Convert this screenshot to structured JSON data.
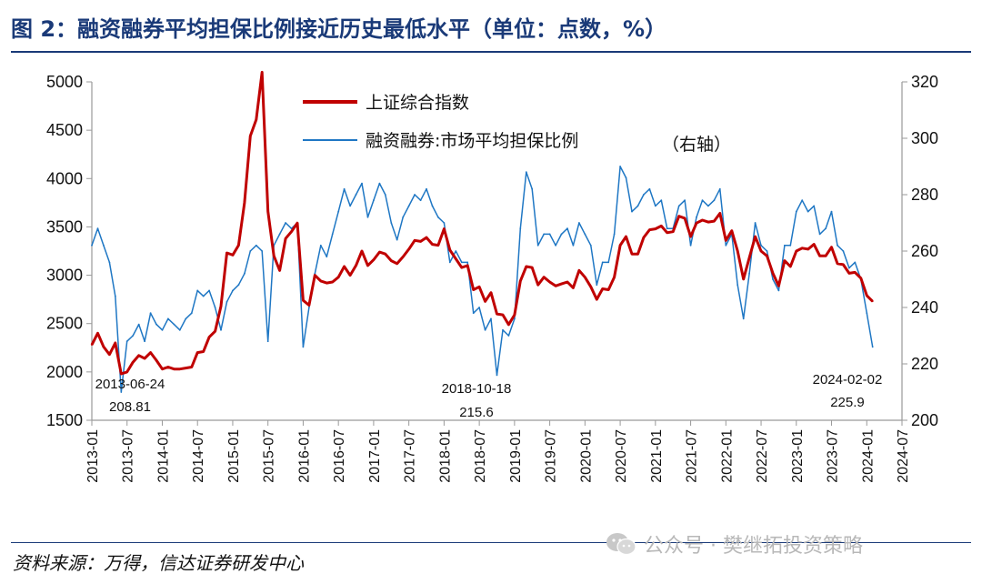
{
  "title": "图 2：融资融券平均担保比例接近历史最低水平（单位：点数，%）",
  "source": "资料来源：万得，信达证券研发中心",
  "watermark": "公众号 · 樊继拓投资策略",
  "colors": {
    "sse": "#c00000",
    "ratio": "#1f77c4",
    "title": "#1a3a78",
    "axis": "#9a9a9a"
  },
  "chart_data": {
    "type": "line",
    "legend_position": "top-center",
    "grid": false,
    "x": [
      "2013-01",
      "2013-07",
      "2014-01",
      "2014-07",
      "2015-01",
      "2015-07",
      "2016-01",
      "2016-07",
      "2017-01",
      "2017-07",
      "2018-01",
      "2018-07",
      "2019-01",
      "2019-07",
      "2020-01",
      "2020-07",
      "2021-01",
      "2021-07",
      "2022-01",
      "2022-07",
      "2023-01",
      "2023-07",
      "2024-01",
      "2024-07"
    ],
    "xlim": [
      "2013-01",
      "2024-07"
    ],
    "y_left": {
      "ylim": [
        1500,
        5000
      ],
      "ticks": [
        "1500",
        "2000",
        "2500",
        "3000",
        "3500",
        "4000",
        "4500",
        "5000"
      ]
    },
    "y_right": {
      "ylim": [
        200,
        320
      ],
      "ticks": [
        "200",
        "220",
        "240",
        "260",
        "280",
        "300",
        "320"
      ]
    },
    "series": [
      {
        "name": "上证综合指数",
        "axis": "left",
        "color": "#c00000",
        "points": [
          [
            "2013-01",
            2280
          ],
          [
            "2013-02",
            2400
          ],
          [
            "2013-03",
            2260
          ],
          [
            "2013-04",
            2180
          ],
          [
            "2013-05",
            2300
          ],
          [
            "2013-06",
            1980
          ],
          [
            "2013-07",
            2000
          ],
          [
            "2013-08",
            2100
          ],
          [
            "2013-09",
            2170
          ],
          [
            "2013-10",
            2140
          ],
          [
            "2013-11",
            2200
          ],
          [
            "2013-12",
            2120
          ],
          [
            "2014-01",
            2030
          ],
          [
            "2014-02",
            2050
          ],
          [
            "2014-03",
            2030
          ],
          [
            "2014-04",
            2030
          ],
          [
            "2014-05",
            2040
          ],
          [
            "2014-06",
            2050
          ],
          [
            "2014-07",
            2200
          ],
          [
            "2014-08",
            2210
          ],
          [
            "2014-09",
            2360
          ],
          [
            "2014-10",
            2420
          ],
          [
            "2014-11",
            2680
          ],
          [
            "2014-12",
            3230
          ],
          [
            "2015-01",
            3210
          ],
          [
            "2015-02",
            3310
          ],
          [
            "2015-03",
            3750
          ],
          [
            "2015-04",
            4440
          ],
          [
            "2015-05",
            4610
          ],
          [
            "2015-06",
            5100
          ],
          [
            "2015-07",
            3660
          ],
          [
            "2015-08",
            3200
          ],
          [
            "2015-09",
            3050
          ],
          [
            "2015-10",
            3380
          ],
          [
            "2015-11",
            3450
          ],
          [
            "2015-12",
            3540
          ],
          [
            "2016-01",
            2740
          ],
          [
            "2016-02",
            2690
          ],
          [
            "2016-03",
            3000
          ],
          [
            "2016-04",
            2940
          ],
          [
            "2016-05",
            2920
          ],
          [
            "2016-06",
            2930
          ],
          [
            "2016-07",
            2980
          ],
          [
            "2016-08",
            3090
          ],
          [
            "2016-09",
            3000
          ],
          [
            "2016-10",
            3100
          ],
          [
            "2016-11",
            3250
          ],
          [
            "2016-12",
            3100
          ],
          [
            "2017-01",
            3160
          ],
          [
            "2017-02",
            3240
          ],
          [
            "2017-03",
            3220
          ],
          [
            "2017-04",
            3150
          ],
          [
            "2017-05",
            3120
          ],
          [
            "2017-06",
            3190
          ],
          [
            "2017-07",
            3270
          ],
          [
            "2017-08",
            3360
          ],
          [
            "2017-09",
            3350
          ],
          [
            "2017-10",
            3390
          ],
          [
            "2017-11",
            3320
          ],
          [
            "2017-12",
            3310
          ],
          [
            "2018-01",
            3480
          ],
          [
            "2018-02",
            3260
          ],
          [
            "2018-03",
            3170
          ],
          [
            "2018-04",
            3080
          ],
          [
            "2018-05",
            3100
          ],
          [
            "2018-06",
            2850
          ],
          [
            "2018-07",
            2880
          ],
          [
            "2018-08",
            2730
          ],
          [
            "2018-09",
            2820
          ],
          [
            "2018-10",
            2600
          ],
          [
            "2018-11",
            2590
          ],
          [
            "2018-12",
            2490
          ],
          [
            "2019-01",
            2590
          ],
          [
            "2019-02",
            2940
          ],
          [
            "2019-03",
            3090
          ],
          [
            "2019-04",
            3080
          ],
          [
            "2019-05",
            2900
          ],
          [
            "2019-06",
            2980
          ],
          [
            "2019-07",
            2930
          ],
          [
            "2019-08",
            2890
          ],
          [
            "2019-09",
            2910
          ],
          [
            "2019-10",
            2930
          ],
          [
            "2019-11",
            2870
          ],
          [
            "2019-12",
            3050
          ],
          [
            "2020-01",
            2980
          ],
          [
            "2020-02",
            2880
          ],
          [
            "2020-03",
            2750
          ],
          [
            "2020-04",
            2860
          ],
          [
            "2020-05",
            2850
          ],
          [
            "2020-06",
            2980
          ],
          [
            "2020-07",
            3310
          ],
          [
            "2020-08",
            3400
          ],
          [
            "2020-09",
            3220
          ],
          [
            "2020-10",
            3220
          ],
          [
            "2020-11",
            3390
          ],
          [
            "2020-12",
            3470
          ],
          [
            "2021-01",
            3480
          ],
          [
            "2021-02",
            3510
          ],
          [
            "2021-03",
            3440
          ],
          [
            "2021-04",
            3450
          ],
          [
            "2021-05",
            3610
          ],
          [
            "2021-06",
            3590
          ],
          [
            "2021-07",
            3400
          ],
          [
            "2021-08",
            3540
          ],
          [
            "2021-09",
            3570
          ],
          [
            "2021-10",
            3550
          ],
          [
            "2021-11",
            3560
          ],
          [
            "2021-12",
            3640
          ],
          [
            "2022-01",
            3360
          ],
          [
            "2022-02",
            3460
          ],
          [
            "2022-03",
            3250
          ],
          [
            "2022-04",
            2960
          ],
          [
            "2022-05",
            3180
          ],
          [
            "2022-06",
            3400
          ],
          [
            "2022-07",
            3250
          ],
          [
            "2022-08",
            3200
          ],
          [
            "2022-09",
            3020
          ],
          [
            "2022-10",
            2890
          ],
          [
            "2022-11",
            3150
          ],
          [
            "2022-12",
            3090
          ],
          [
            "2023-01",
            3250
          ],
          [
            "2023-02",
            3280
          ],
          [
            "2023-03",
            3270
          ],
          [
            "2023-04",
            3320
          ],
          [
            "2023-05",
            3200
          ],
          [
            "2023-06",
            3200
          ],
          [
            "2023-07",
            3290
          ],
          [
            "2023-08",
            3120
          ],
          [
            "2023-09",
            3110
          ],
          [
            "2023-10",
            3020
          ],
          [
            "2023-11",
            3030
          ],
          [
            "2023-12",
            2970
          ],
          [
            "2024-01",
            2790
          ],
          [
            "2024-02",
            2730
          ]
        ]
      },
      {
        "name": "融资融券:市场平均担保比例",
        "name_suffix": "（右轴）",
        "axis": "right",
        "color": "#1f77c4",
        "points": [
          [
            "2013-01",
            262
          ],
          [
            "2013-02",
            268
          ],
          [
            "2013-03",
            262
          ],
          [
            "2013-04",
            256
          ],
          [
            "2013-05",
            244
          ],
          [
            "2013-06",
            210
          ],
          [
            "2013-07",
            228
          ],
          [
            "2013-08",
            230
          ],
          [
            "2013-09",
            234
          ],
          [
            "2013-10",
            228
          ],
          [
            "2013-11",
            238
          ],
          [
            "2013-12",
            234
          ],
          [
            "2014-01",
            232
          ],
          [
            "2014-02",
            236
          ],
          [
            "2014-03",
            234
          ],
          [
            "2014-04",
            232
          ],
          [
            "2014-05",
            236
          ],
          [
            "2014-06",
            238
          ],
          [
            "2014-07",
            246
          ],
          [
            "2014-08",
            244
          ],
          [
            "2014-09",
            246
          ],
          [
            "2014-10",
            240
          ],
          [
            "2014-11",
            232
          ],
          [
            "2014-12",
            242
          ],
          [
            "2015-01",
            246
          ],
          [
            "2015-02",
            248
          ],
          [
            "2015-03",
            252
          ],
          [
            "2015-04",
            260
          ],
          [
            "2015-05",
            262
          ],
          [
            "2015-06",
            260
          ],
          [
            "2015-07",
            228
          ],
          [
            "2015-08",
            262
          ],
          [
            "2015-09",
            266
          ],
          [
            "2015-10",
            270
          ],
          [
            "2015-11",
            268
          ],
          [
            "2015-12",
            270
          ],
          [
            "2016-01",
            226
          ],
          [
            "2016-02",
            240
          ],
          [
            "2016-03",
            252
          ],
          [
            "2016-04",
            262
          ],
          [
            "2016-05",
            258
          ],
          [
            "2016-06",
            266
          ],
          [
            "2016-07",
            274
          ],
          [
            "2016-08",
            282
          ],
          [
            "2016-09",
            276
          ],
          [
            "2016-10",
            280
          ],
          [
            "2016-11",
            284
          ],
          [
            "2016-12",
            272
          ],
          [
            "2017-01",
            278
          ],
          [
            "2017-02",
            284
          ],
          [
            "2017-03",
            280
          ],
          [
            "2017-04",
            270
          ],
          [
            "2017-05",
            264
          ],
          [
            "2017-06",
            272
          ],
          [
            "2017-07",
            276
          ],
          [
            "2017-08",
            280
          ],
          [
            "2017-09",
            278
          ],
          [
            "2017-10",
            282
          ],
          [
            "2017-11",
            276
          ],
          [
            "2017-12",
            272
          ],
          [
            "2018-01",
            270
          ],
          [
            "2018-02",
            256
          ],
          [
            "2018-03",
            260
          ],
          [
            "2018-04",
            256
          ],
          [
            "2018-05",
            256
          ],
          [
            "2018-06",
            238
          ],
          [
            "2018-07",
            240
          ],
          [
            "2018-08",
            232
          ],
          [
            "2018-09",
            236
          ],
          [
            "2018-10",
            216
          ],
          [
            "2018-11",
            232
          ],
          [
            "2018-12",
            230
          ],
          [
            "2019-01",
            236
          ],
          [
            "2019-02",
            268
          ],
          [
            "2019-03",
            288
          ],
          [
            "2019-04",
            282
          ],
          [
            "2019-05",
            262
          ],
          [
            "2019-06",
            266
          ],
          [
            "2019-07",
            266
          ],
          [
            "2019-08",
            262
          ],
          [
            "2019-09",
            266
          ],
          [
            "2019-10",
            268
          ],
          [
            "2019-11",
            262
          ],
          [
            "2019-12",
            270
          ],
          [
            "2020-01",
            266
          ],
          [
            "2020-02",
            262
          ],
          [
            "2020-03",
            248
          ],
          [
            "2020-04",
            256
          ],
          [
            "2020-05",
            256
          ],
          [
            "2020-06",
            266
          ],
          [
            "2020-07",
            290
          ],
          [
            "2020-08",
            286
          ],
          [
            "2020-09",
            274
          ],
          [
            "2020-10",
            276
          ],
          [
            "2020-11",
            280
          ],
          [
            "2020-12",
            282
          ],
          [
            "2021-01",
            276
          ],
          [
            "2021-02",
            278
          ],
          [
            "2021-03",
            268
          ],
          [
            "2021-04",
            268
          ],
          [
            "2021-05",
            276
          ],
          [
            "2021-06",
            278
          ],
          [
            "2021-07",
            262
          ],
          [
            "2021-08",
            272
          ],
          [
            "2021-09",
            278
          ],
          [
            "2021-10",
            276
          ],
          [
            "2021-11",
            278
          ],
          [
            "2021-12",
            282
          ],
          [
            "2022-01",
            262
          ],
          [
            "2022-02",
            266
          ],
          [
            "2022-03",
            248
          ],
          [
            "2022-04",
            236
          ],
          [
            "2022-05",
            252
          ],
          [
            "2022-06",
            270
          ],
          [
            "2022-07",
            262
          ],
          [
            "2022-08",
            260
          ],
          [
            "2022-09",
            250
          ],
          [
            "2022-10",
            246
          ],
          [
            "2022-11",
            262
          ],
          [
            "2022-12",
            262
          ],
          [
            "2023-01",
            274
          ],
          [
            "2023-02",
            278
          ],
          [
            "2023-03",
            274
          ],
          [
            "2023-04",
            276
          ],
          [
            "2023-05",
            266
          ],
          [
            "2023-06",
            268
          ],
          [
            "2023-07",
            274
          ],
          [
            "2023-08",
            262
          ],
          [
            "2023-09",
            260
          ],
          [
            "2023-10",
            254
          ],
          [
            "2023-11",
            256
          ],
          [
            "2023-12",
            250
          ],
          [
            "2024-01",
            238
          ],
          [
            "2024-02",
            226
          ]
        ]
      }
    ],
    "annotations": [
      {
        "date": "2013-06-24",
        "label": "2013-06-24",
        "value": "208.81"
      },
      {
        "date": "2018-10-18",
        "label": "2018-10-18",
        "value": "215.6"
      },
      {
        "date": "2024-02-02",
        "label": "2024-02-02",
        "value": "225.9"
      }
    ]
  }
}
